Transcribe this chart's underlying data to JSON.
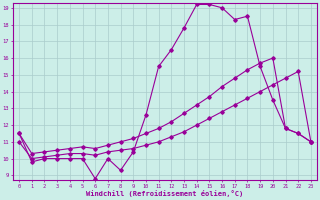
{
  "xlabel": "Windchill (Refroidissement éolien,°C)",
  "bg_color": "#cceee8",
  "line_color": "#990099",
  "grid_color": "#aacccc",
  "x": [
    0,
    1,
    2,
    3,
    4,
    5,
    6,
    7,
    8,
    9,
    10,
    11,
    12,
    13,
    14,
    15,
    16,
    17,
    18,
    19,
    20,
    21,
    22,
    23
  ],
  "line1": [
    11.5,
    9.8,
    10.0,
    10.0,
    10.0,
    10.0,
    8.8,
    10.0,
    9.3,
    10.4,
    12.6,
    15.5,
    16.5,
    17.8,
    19.2,
    19.2,
    19.0,
    18.3,
    18.5,
    15.5,
    13.5,
    11.8,
    11.5,
    11.0
  ],
  "line2": [
    11.5,
    10.3,
    10.4,
    10.5,
    10.6,
    10.7,
    10.6,
    10.8,
    11.0,
    11.2,
    11.5,
    11.8,
    12.2,
    12.7,
    13.2,
    13.7,
    14.3,
    14.8,
    15.3,
    15.7,
    16.0,
    11.8,
    11.5,
    11.0
  ],
  "line3": [
    11.0,
    10.0,
    10.1,
    10.2,
    10.3,
    10.3,
    10.2,
    10.4,
    10.5,
    10.6,
    10.8,
    11.0,
    11.3,
    11.6,
    12.0,
    12.4,
    12.8,
    13.2,
    13.6,
    14.0,
    14.4,
    14.8,
    15.2,
    11.0
  ],
  "ylim": [
    9,
    19
  ],
  "yticks": [
    9,
    10,
    11,
    12,
    13,
    14,
    15,
    16,
    17,
    18,
    19
  ],
  "xlim": [
    -0.5,
    23.5
  ]
}
